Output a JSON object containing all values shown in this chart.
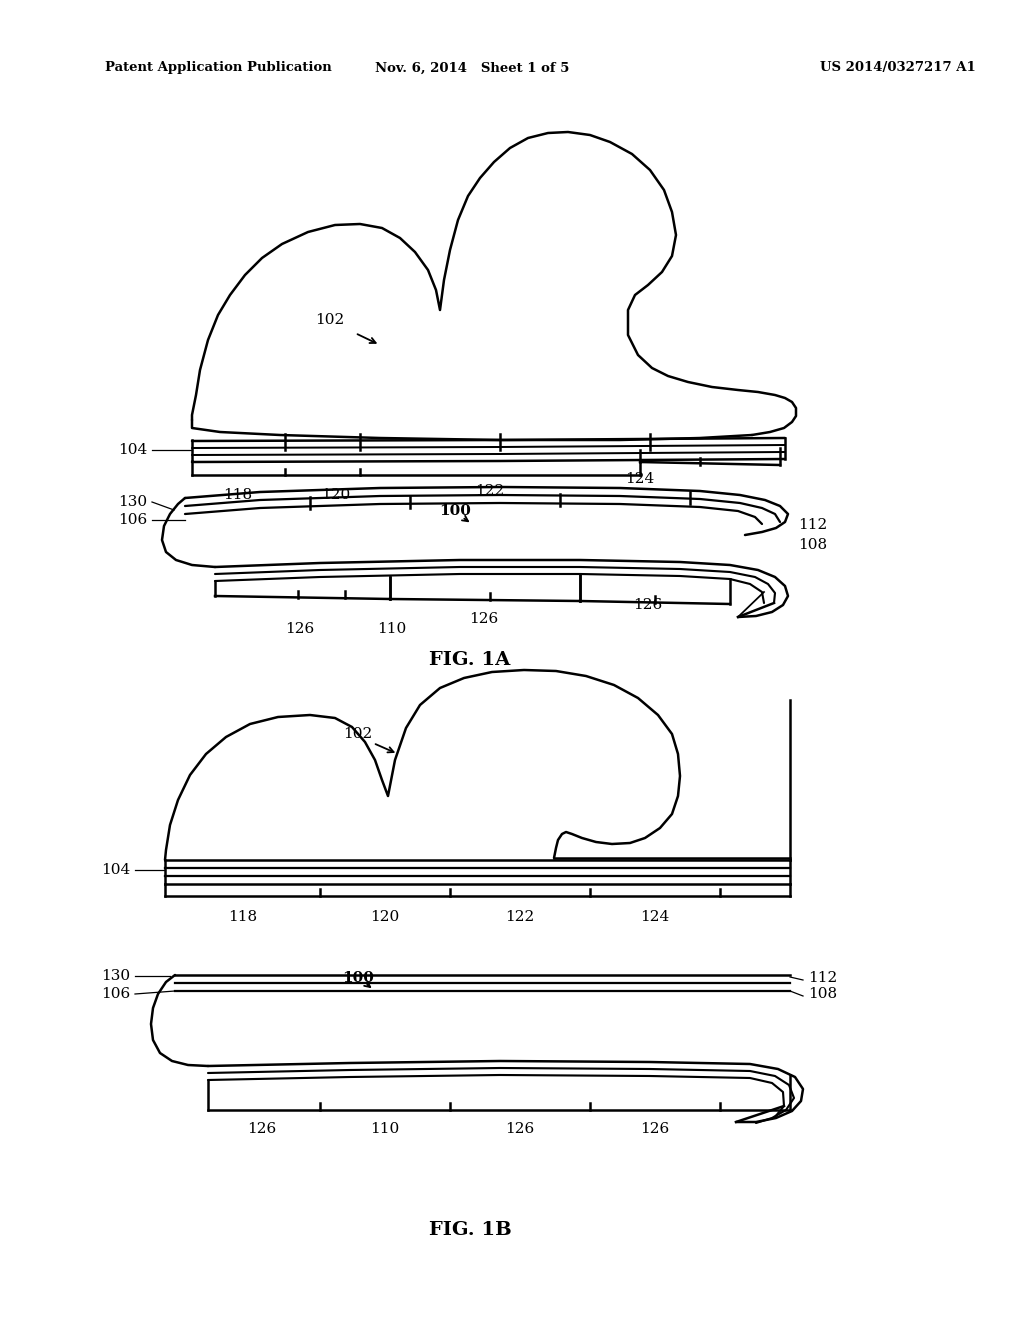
{
  "header_left": "Patent Application Publication",
  "header_center": "Nov. 6, 2014   Sheet 1 of 5",
  "header_right": "US 2014/0327217 A1",
  "fig1a_label": "FIG. 1A",
  "fig1b_label": "FIG. 1B",
  "bg_color": "#ffffff",
  "line_color": "#000000"
}
